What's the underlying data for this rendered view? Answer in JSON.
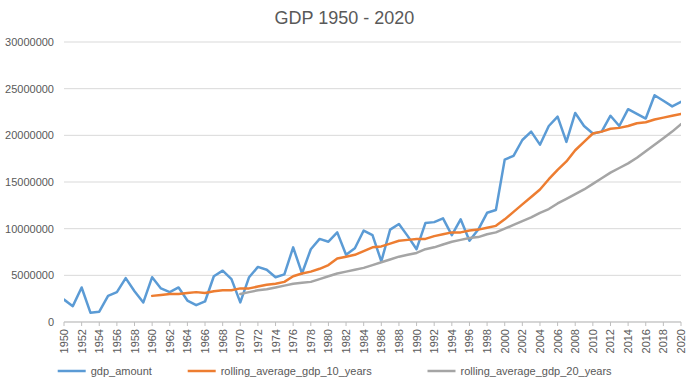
{
  "chart_data": {
    "type": "line",
    "title": "GDP 1950 - 2020",
    "x": [
      1950,
      1951,
      1952,
      1953,
      1954,
      1955,
      1956,
      1957,
      1958,
      1959,
      1960,
      1961,
      1962,
      1963,
      1964,
      1965,
      1966,
      1967,
      1968,
      1969,
      1970,
      1971,
      1972,
      1973,
      1974,
      1975,
      1976,
      1977,
      1978,
      1979,
      1980,
      1981,
      1982,
      1983,
      1984,
      1985,
      1986,
      1987,
      1988,
      1989,
      1990,
      1991,
      1992,
      1993,
      1994,
      1995,
      1996,
      1997,
      1998,
      1999,
      2000,
      2001,
      2002,
      2003,
      2004,
      2005,
      2006,
      2007,
      2008,
      2009,
      2010,
      2011,
      2012,
      2013,
      2014,
      2015,
      2016,
      2017,
      2018,
      2019,
      2020
    ],
    "series": [
      {
        "name": "gdp_amount",
        "color": "#5b9bd5",
        "values": [
          2400000,
          1700000,
          3700000,
          1000000,
          1100000,
          2800000,
          3200000,
          4700000,
          3300000,
          2100000,
          4800000,
          3600000,
          3200000,
          3700000,
          2300000,
          1800000,
          2200000,
          4900000,
          5500000,
          4600000,
          2100000,
          4800000,
          5900000,
          5600000,
          4800000,
          5100000,
          8000000,
          5200000,
          7800000,
          8900000,
          8600000,
          9600000,
          7200000,
          7900000,
          9800000,
          9300000,
          6500000,
          9900000,
          10500000,
          9200000,
          7800000,
          10600000,
          10700000,
          11100000,
          9300000,
          11000000,
          8700000,
          9900000,
          11700000,
          12000000,
          17400000,
          17800000,
          19500000,
          20400000,
          19000000,
          21000000,
          22000000,
          19300000,
          22400000,
          21000000,
          20200000,
          20400000,
          22100000,
          21000000,
          22800000,
          22300000,
          21800000,
          24300000,
          23700000,
          23100000,
          23600000
        ]
      },
      {
        "name": "rolling_average_gdp_10_years",
        "color": "#ed7d31",
        "values": [
          null,
          null,
          null,
          null,
          null,
          null,
          null,
          null,
          null,
          null,
          2800000,
          2900000,
          3000000,
          3000000,
          3100000,
          3200000,
          3100000,
          3300000,
          3400000,
          3400000,
          3600000,
          3600000,
          3800000,
          4000000,
          4100000,
          4300000,
          4900000,
          5200000,
          5400000,
          5700000,
          6100000,
          6800000,
          7000000,
          7200000,
          7600000,
          8000000,
          8100000,
          8400000,
          8700000,
          8800000,
          8900000,
          8900000,
          9200000,
          9400000,
          9600000,
          9600000,
          9800000,
          9900000,
          10100000,
          10300000,
          11000000,
          11800000,
          12600000,
          13400000,
          14200000,
          15300000,
          16300000,
          17200000,
          18400000,
          19300000,
          20200000,
          20400000,
          20700000,
          20800000,
          21000000,
          21300000,
          21400000,
          21700000,
          21900000,
          22100000,
          22300000
        ]
      },
      {
        "name": "rolling_average_gdp_20_years",
        "color": "#a5a5a5",
        "values": [
          null,
          null,
          null,
          null,
          null,
          null,
          null,
          null,
          null,
          null,
          null,
          null,
          null,
          null,
          null,
          null,
          null,
          null,
          null,
          null,
          3000000,
          3200000,
          3400000,
          3500000,
          3700000,
          3900000,
          4100000,
          4200000,
          4300000,
          4600000,
          4900000,
          5200000,
          5400000,
          5600000,
          5800000,
          6100000,
          6400000,
          6700000,
          7000000,
          7200000,
          7400000,
          7800000,
          8000000,
          8300000,
          8600000,
          8800000,
          9000000,
          9100000,
          9400000,
          9600000,
          10000000,
          10400000,
          10800000,
          11200000,
          11700000,
          12100000,
          12700000,
          13200000,
          13700000,
          14200000,
          14800000,
          15400000,
          16000000,
          16500000,
          17000000,
          17600000,
          18300000,
          19000000,
          19700000,
          20400000,
          21200000
        ]
      }
    ],
    "xlim": [
      1950,
      2020
    ],
    "xticks": [
      1950,
      1952,
      1954,
      1956,
      1958,
      1960,
      1962,
      1964,
      1966,
      1968,
      1970,
      1972,
      1974,
      1976,
      1978,
      1980,
      1982,
      1984,
      1986,
      1988,
      1990,
      1992,
      1994,
      1996,
      1998,
      2000,
      2002,
      2004,
      2006,
      2008,
      2010,
      2012,
      2014,
      2016,
      2018,
      2020
    ],
    "ylim": [
      0,
      30000000
    ],
    "yticks": [
      0,
      5000000,
      10000000,
      15000000,
      20000000,
      25000000,
      30000000
    ],
    "grid": true,
    "legend": "bottom"
  }
}
